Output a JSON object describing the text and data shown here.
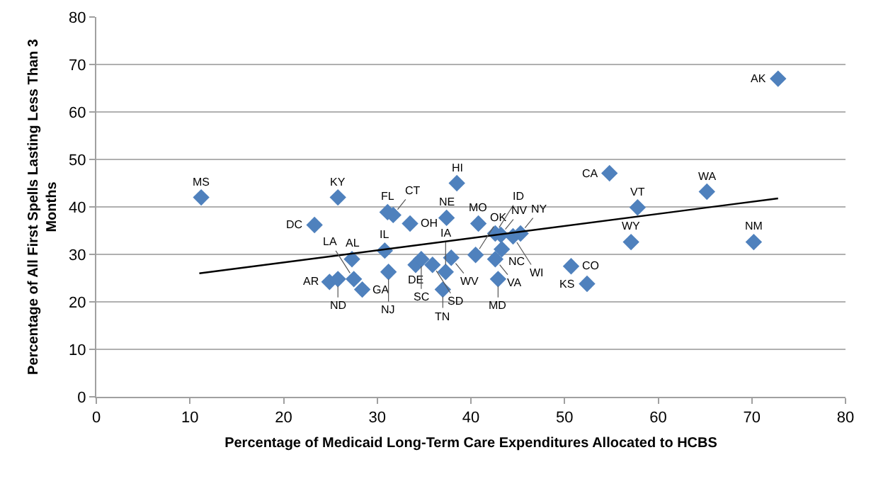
{
  "chart_data": {
    "type": "scatter",
    "xlabel": "Percentage of Medicaid Long-Term Care Expenditures Allocated to HCBS",
    "ylabel": "Percentage of All First Spells Lasting Less Than 3 Months",
    "xlim": [
      0,
      80
    ],
    "xticks": [
      0,
      10,
      20,
      30,
      40,
      50,
      60,
      70,
      80
    ],
    "ylim": [
      0,
      80
    ],
    "yticks": [
      0,
      10,
      20,
      30,
      40,
      50,
      60,
      70,
      80
    ],
    "grid": "y",
    "marker": "diamond",
    "series": [
      {
        "type": "scatter",
        "color": "#4f81bd",
        "x": [
          11.2,
          25.8,
          23.3,
          27.3,
          24.9,
          25.8,
          27.5,
          28.4,
          30.8,
          31.2,
          31.1,
          31.7,
          33.5,
          34.1,
          34.7,
          35.9,
          37.4,
          38.5,
          37.9,
          37.3,
          37.0,
          40.8,
          40.5,
          42.6,
          42.6,
          42.9,
          43.2,
          43.3,
          44.5,
          45.3,
          50.7,
          52.4,
          54.8,
          57.8,
          57.1,
          65.2,
          70.2,
          72.8
        ],
        "values": [
          42.0,
          42.0,
          36.2,
          29.0,
          24.2,
          24.8,
          24.8,
          22.6,
          30.8,
          26.3,
          38.9,
          38.3,
          36.5,
          27.8,
          29.0,
          27.8,
          37.7,
          45.0,
          29.3,
          26.3,
          22.6,
          36.5,
          29.9,
          34.4,
          29.0,
          24.8,
          34.1,
          31.1,
          33.8,
          34.4,
          27.5,
          23.8,
          47.1,
          39.9,
          32.6,
          43.2,
          32.6,
          67.0
        ]
      },
      {
        "type": "line",
        "color": "#000000",
        "marker": "none",
        "x": [
          11.0,
          72.8
        ],
        "values": [
          26.0,
          41.8
        ]
      }
    ],
    "annotations": [
      {
        "text": "MS",
        "x": 11.2,
        "y": 42.0
      },
      {
        "text": "KY",
        "x": 25.8,
        "y": 42.0
      },
      {
        "text": "DC",
        "x": 23.3,
        "y": 36.2
      },
      {
        "text": "AL",
        "x": 27.3,
        "y": 29.0
      },
      {
        "text": "AR",
        "x": 24.9,
        "y": 24.2
      },
      {
        "text": "ND",
        "x": 25.8,
        "y": 24.8
      },
      {
        "text": "LA",
        "x": 27.5,
        "y": 24.8
      },
      {
        "text": "GA",
        "x": 28.4,
        "y": 22.6
      },
      {
        "text": "IL",
        "x": 30.8,
        "y": 30.8
      },
      {
        "text": "NJ",
        "x": 31.2,
        "y": 26.3
      },
      {
        "text": "FL",
        "x": 31.1,
        "y": 38.9
      },
      {
        "text": "CT",
        "x": 31.7,
        "y": 38.3
      },
      {
        "text": "OH",
        "x": 33.5,
        "y": 36.5
      },
      {
        "text": "DE",
        "x": 34.1,
        "y": 27.8
      },
      {
        "text": "SC",
        "x": 34.7,
        "y": 29.0
      },
      {
        "text": "SD",
        "x": 35.9,
        "y": 27.8
      },
      {
        "text": "NE",
        "x": 37.4,
        "y": 37.7
      },
      {
        "text": "HI",
        "x": 38.5,
        "y": 45.0
      },
      {
        "text": "WV",
        "x": 37.9,
        "y": 29.3
      },
      {
        "text": "IA",
        "x": 37.3,
        "y": 26.3
      },
      {
        "text": "TN",
        "x": 37.0,
        "y": 22.6
      },
      {
        "text": "MO",
        "x": 40.8,
        "y": 36.5
      },
      {
        "text": "OK",
        "x": 40.5,
        "y": 29.9
      },
      {
        "text": "ID",
        "x": 42.6,
        "y": 34.4
      },
      {
        "text": "VA",
        "x": 42.6,
        "y": 29.0
      },
      {
        "text": "MD",
        "x": 42.9,
        "y": 24.8
      },
      {
        "text": "NV",
        "x": 43.2,
        "y": 34.1
      },
      {
        "text": "NC",
        "x": 43.3,
        "y": 31.1
      },
      {
        "text": "WI",
        "x": 44.5,
        "y": 33.8
      },
      {
        "text": "NY",
        "x": 45.3,
        "y": 34.4
      },
      {
        "text": "CO",
        "x": 50.7,
        "y": 27.5
      },
      {
        "text": "KS",
        "x": 52.4,
        "y": 23.8
      },
      {
        "text": "CA",
        "x": 54.8,
        "y": 47.1
      },
      {
        "text": "VT",
        "x": 57.8,
        "y": 39.9
      },
      {
        "text": "WY",
        "x": 57.1,
        "y": 32.6
      },
      {
        "text": "WA",
        "x": 65.2,
        "y": 43.2
      },
      {
        "text": "NM",
        "x": 70.2,
        "y": 32.6
      },
      {
        "text": "AK",
        "x": 72.8,
        "y": 67.0
      }
    ]
  }
}
